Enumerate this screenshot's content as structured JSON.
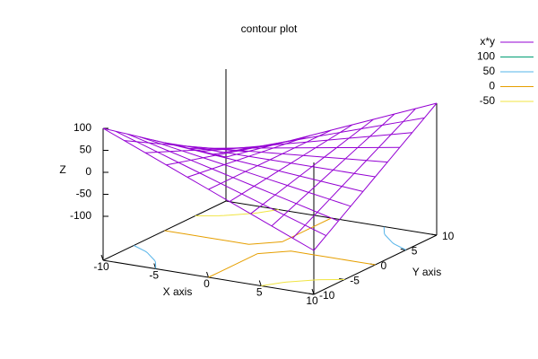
{
  "chart_data": {
    "type": "surface",
    "title": "contour plot",
    "xlabel": "X axis",
    "ylabel": "Y axis",
    "zlabel": "Z",
    "xlim": [
      -10,
      10
    ],
    "ylim": [
      -10,
      10
    ],
    "zlim": [
      -100,
      100
    ],
    "xticks": [
      -10,
      -5,
      0,
      5,
      10
    ],
    "yticks": [
      -10,
      -5,
      0,
      5,
      10
    ],
    "zticks": [
      -100,
      -50,
      0,
      50,
      100
    ],
    "series": [
      {
        "name": "x*y",
        "color": "#9400d3"
      }
    ],
    "x": [
      -10,
      -8,
      -6,
      -4,
      -2,
      0,
      2,
      4,
      6,
      8,
      10
    ],
    "y": [
      -10,
      -8,
      -6,
      -4,
      -2,
      0,
      2,
      4,
      6,
      8,
      10
    ],
    "z": [
      [
        100,
        80,
        60,
        40,
        20,
        0,
        -20,
        -40,
        -60,
        -80,
        -100
      ],
      [
        80,
        64,
        48,
        32,
        16,
        0,
        -16,
        -32,
        -48,
        -64,
        -80
      ],
      [
        60,
        48,
        36,
        24,
        12,
        0,
        -12,
        -24,
        -36,
        -48,
        -60
      ],
      [
        40,
        32,
        24,
        16,
        8,
        0,
        -8,
        -16,
        -24,
        -32,
        -40
      ],
      [
        20,
        16,
        12,
        8,
        4,
        0,
        -4,
        -8,
        -12,
        -16,
        -20
      ],
      [
        0,
        0,
        0,
        0,
        0,
        0,
        0,
        0,
        0,
        0,
        0
      ],
      [
        -20,
        -16,
        -12,
        -8,
        -4,
        0,
        4,
        8,
        12,
        16,
        20
      ],
      [
        -40,
        -32,
        -24,
        -16,
        -8,
        0,
        8,
        16,
        24,
        32,
        40
      ],
      [
        -60,
        -48,
        -36,
        -24,
        -12,
        0,
        12,
        24,
        36,
        48,
        60
      ],
      [
        -80,
        -64,
        -48,
        -32,
        -16,
        0,
        16,
        32,
        48,
        64,
        80
      ],
      [
        -100,
        -80,
        -60,
        -40,
        -20,
        0,
        20,
        40,
        60,
        80,
        100
      ]
    ],
    "contours": [
      {
        "level": 100,
        "color": "#009e73"
      },
      {
        "level": 50,
        "color": "#56b4e9"
      },
      {
        "level": 0,
        "color": "#e69f00"
      },
      {
        "level": -50,
        "color": "#f0e442"
      }
    ],
    "legend": "top-right"
  }
}
